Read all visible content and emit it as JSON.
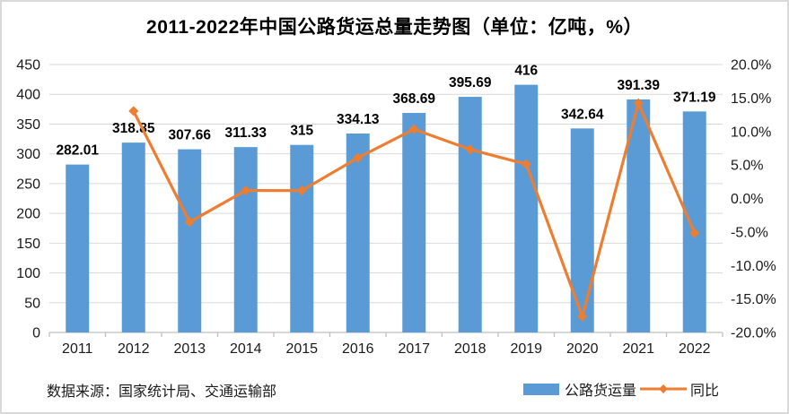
{
  "title": "2011-2022年中国公路货运总量走势图（单位：亿吨，%）",
  "source": "数据来源：国家统计局、交通运输部",
  "legend": {
    "bar": "公路货运量",
    "line": "同比"
  },
  "colors": {
    "bar": "#5B9BD5",
    "line": "#ED7D31",
    "grid": "#D9D9D9",
    "axis": "#BFBFBF",
    "axis_text": "#1A1A1A",
    "data_label": "#000000",
    "frame_border": "#D9D9D9"
  },
  "chart_data": {
    "type": "combo-bar-line",
    "title": "2011-2022年中国公路货运总量走势图（单位：亿吨，%）",
    "categories": [
      "2011",
      "2012",
      "2013",
      "2014",
      "2015",
      "2016",
      "2017",
      "2018",
      "2019",
      "2020",
      "2021",
      "2022"
    ],
    "series": [
      {
        "name": "公路货运量",
        "type": "bar",
        "axis": "left",
        "unit": "亿吨",
        "values": [
          282.01,
          318.85,
          307.66,
          311.33,
          315,
          334.13,
          368.69,
          395.69,
          416,
          342.64,
          391.39,
          371.19
        ],
        "labels": [
          "282.01",
          "318.85",
          "307.66",
          "311.33",
          "315",
          "334.13",
          "368.69",
          "395.69",
          "416",
          "342.64",
          "391.39",
          "371.19"
        ]
      },
      {
        "name": "同比",
        "type": "line",
        "axis": "right",
        "unit": "%",
        "marker": "diamond",
        "values": [
          null,
          13.06,
          -3.51,
          1.19,
          1.18,
          6.07,
          10.34,
          7.32,
          5.13,
          -17.63,
          14.23,
          -5.16
        ]
      }
    ],
    "left_axis": {
      "min": 0,
      "max": 450,
      "step": 50,
      "ticks": [
        "0",
        "50",
        "100",
        "150",
        "200",
        "250",
        "300",
        "350",
        "400",
        "450"
      ]
    },
    "right_axis": {
      "min": -20,
      "max": 20,
      "step": 5,
      "ticks": [
        "-20.0%",
        "-15.0%",
        "-10.0%",
        "-5.0%",
        "0.0%",
        "5.0%",
        "10.0%",
        "15.0%",
        "20.0%"
      ]
    },
    "grid": true,
    "legend_position": "bottom-right"
  }
}
